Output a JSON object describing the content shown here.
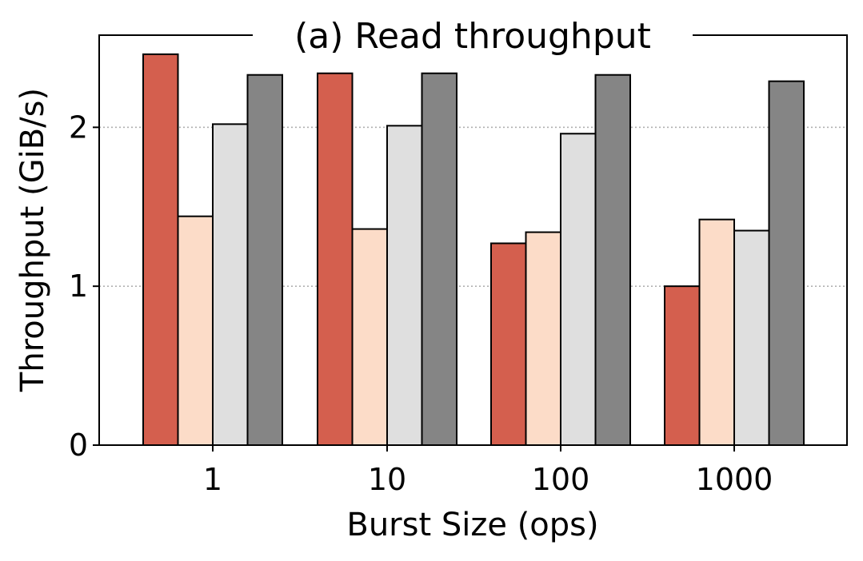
{
  "chart_data": {
    "type": "bar",
    "title": "(a) Read throughput",
    "xlabel": "Burst Size (ops)",
    "ylabel": "Throughput (GiB/s)",
    "categories": [
      "1",
      "10",
      "100",
      "1000"
    ],
    "yticks": [
      "0",
      "1",
      "2"
    ],
    "ylim": [
      0,
      2.58
    ],
    "grid": "horizontal dotted at y ticks",
    "legend": "none",
    "series": [
      {
        "color": "#d45f4e",
        "values": [
          2.46,
          2.34,
          1.27,
          1.0
        ]
      },
      {
        "color": "#fcdcc8",
        "values": [
          1.44,
          1.36,
          1.34,
          1.42
        ]
      },
      {
        "color": "#dfdfdf",
        "values": [
          2.02,
          2.01,
          1.96,
          1.35
        ]
      },
      {
        "color": "#858585",
        "values": [
          2.33,
          2.34,
          2.33,
          2.29
        ]
      }
    ]
  }
}
